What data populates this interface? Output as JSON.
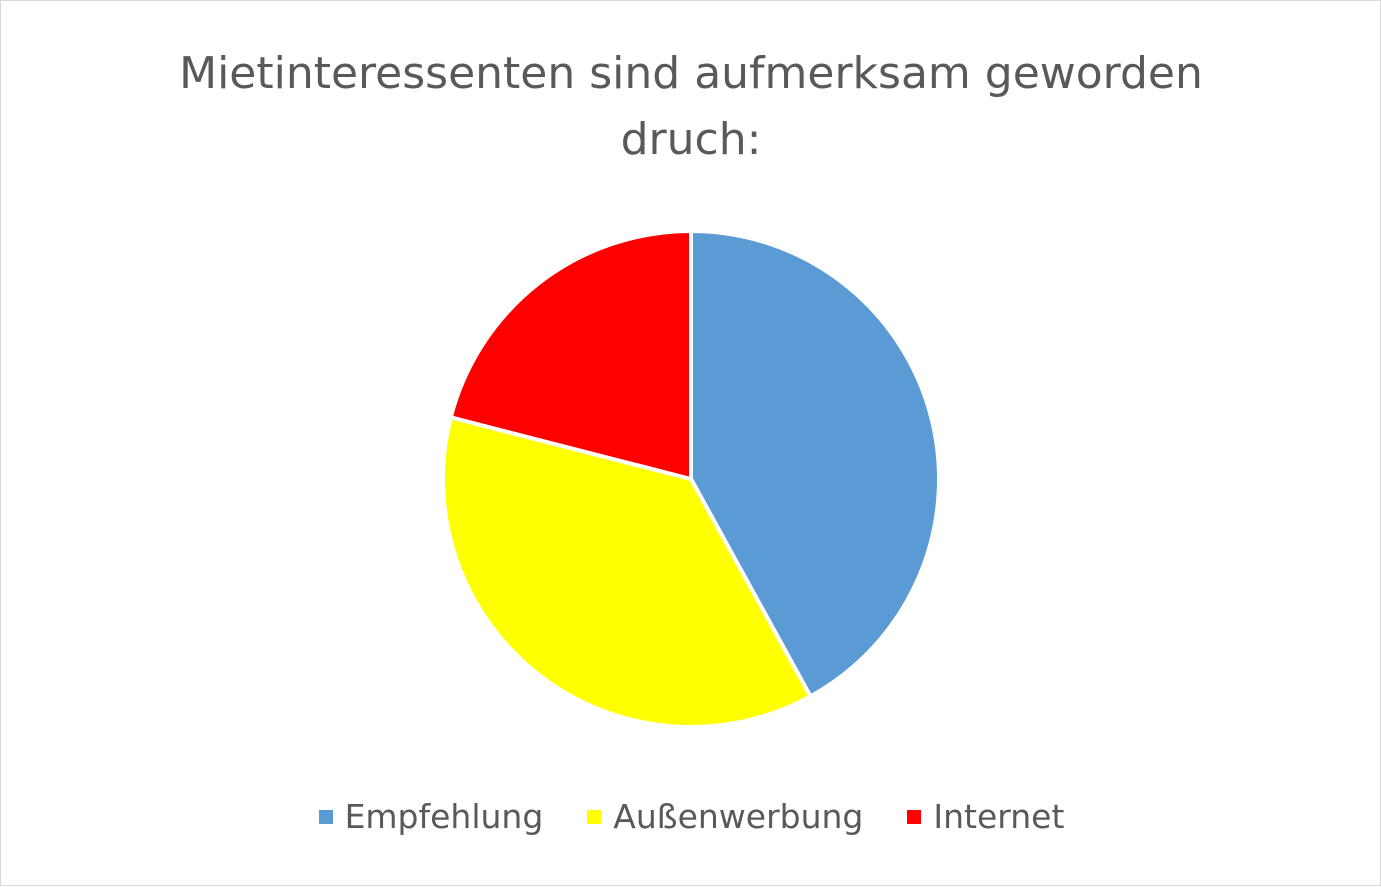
{
  "chart_data": {
    "type": "pie",
    "title": "Mietinteressenten sind aufmerksam geworden druch:",
    "categories": [
      "Empfehlung",
      "Außenwerbung",
      "Internet"
    ],
    "values": [
      42,
      37,
      21
    ],
    "colors": [
      "#5b9bd5",
      "#ffff00",
      "#ff0000"
    ],
    "legend": "bottom"
  }
}
